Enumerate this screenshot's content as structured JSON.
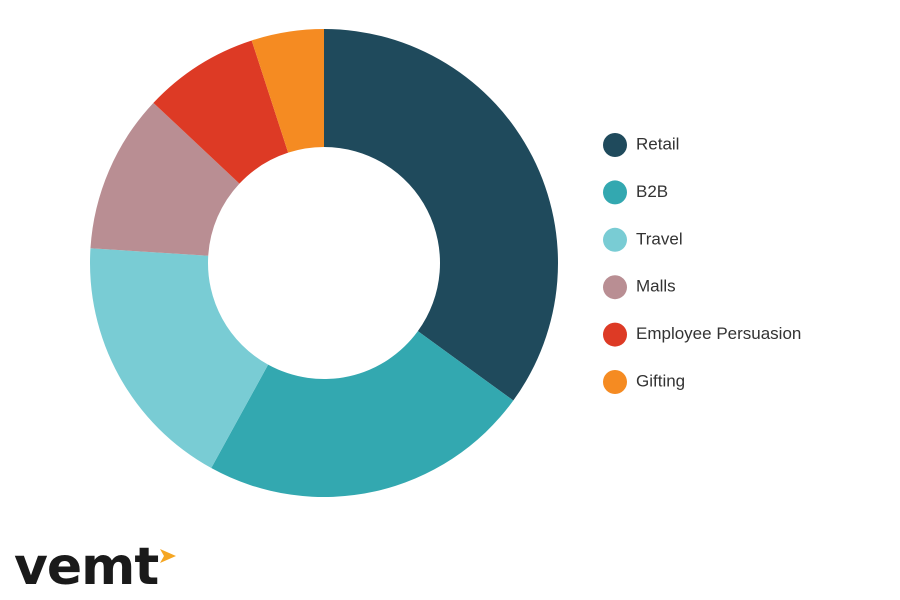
{
  "chart_data": {
    "type": "pie",
    "donut": true,
    "categories": [
      "Retail",
      "B2B",
      "Travel",
      "Malls",
      "Employee Persuasion",
      "Gifting"
    ],
    "values": [
      35,
      23,
      18,
      11,
      8,
      5
    ],
    "colors": [
      "#1f4a5c",
      "#33a8b0",
      "#79ccd4",
      "#b98e93",
      "#dd3a25",
      "#f58b22"
    ],
    "legend": "right"
  },
  "logo": "vemt"
}
